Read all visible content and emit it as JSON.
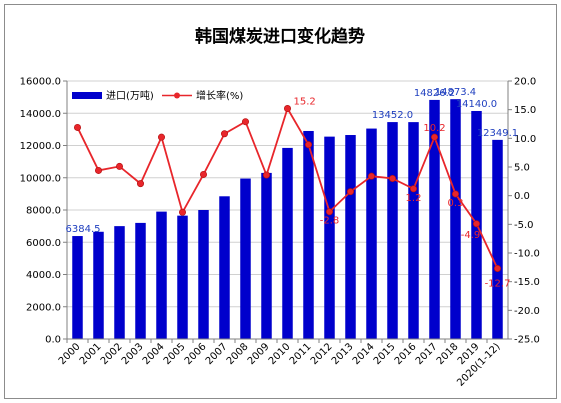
{
  "chart_data": {
    "type": "bar+line",
    "title": "韩国煤炭进口变化趋势",
    "categories": [
      "2000",
      "2001",
      "2002",
      "2003",
      "2004",
      "2005",
      "2006",
      "2007",
      "2008",
      "2009",
      "2010",
      "2011",
      "2012",
      "2013",
      "2014",
      "2015",
      "2016",
      "2017",
      "2018",
      "2019",
      "2020(1-12)"
    ],
    "series": [
      {
        "name": "进口(万吨)",
        "type": "bar",
        "axis": "left",
        "color": "#0000cc",
        "values": [
          6384.5,
          6650,
          7000,
          7200,
          7900,
          7650,
          8000,
          8850,
          9950,
          10300,
          11850,
          12900,
          12550,
          12650,
          13050,
          13452.0,
          13450,
          14826.2,
          14873.4,
          14140.0,
          12349.1
        ]
      },
      {
        "name": "增长率(%)",
        "type": "line",
        "axis": "right",
        "color": "#e8262b",
        "values": [
          11.9,
          4.4,
          5.1,
          2.1,
          10.2,
          -2.9,
          3.7,
          10.8,
          12.9,
          3.6,
          15.2,
          8.9,
          -2.8,
          0.7,
          3.4,
          3.0,
          1.2,
          10.2,
          0.3,
          -4.9,
          -12.7
        ]
      }
    ],
    "y_left": {
      "min": 0,
      "max": 16000,
      "step": 2000,
      "ticks": [
        "0.0",
        "2000.0",
        "4000.0",
        "6000.0",
        "8000.0",
        "10000.0",
        "12000.0",
        "14000.0",
        "16000.0"
      ]
    },
    "y_right": {
      "min": -25,
      "max": 20,
      "step": 5,
      "ticks": [
        "-25.0",
        "-20.0",
        "-15.0",
        "-10.0",
        "-5.0",
        "0.0",
        "5.0",
        "10.0",
        "15.0",
        "20.0"
      ]
    },
    "bar_labels": [
      {
        "index": 0,
        "text": "6384.5"
      },
      {
        "index": 15,
        "text": "13452.0"
      },
      {
        "index": 17,
        "text": "14826.2"
      },
      {
        "index": 18,
        "text": "14873.4"
      },
      {
        "index": 19,
        "text": "14140.0"
      },
      {
        "index": 20,
        "text": "12349.1"
      }
    ],
    "rate_labels": [
      {
        "index": 10,
        "text": "15.2"
      },
      {
        "index": 12,
        "text": "-2.8"
      },
      {
        "index": 16,
        "text": "1.2"
      },
      {
        "index": 17,
        "text": "10.2"
      },
      {
        "index": 18,
        "text": "0.3"
      },
      {
        "index": 19,
        "text": "-4.9"
      },
      {
        "index": 20,
        "text": "-12.7"
      }
    ],
    "legend": {
      "position": "top-left"
    },
    "grid": true
  }
}
